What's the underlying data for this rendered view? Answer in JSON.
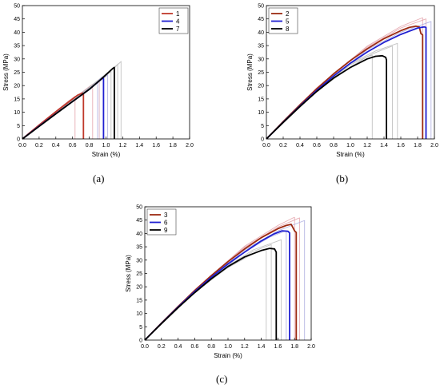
{
  "chart_data": [
    {
      "panel_label": "(a)",
      "type": "line",
      "xlabel": "Strain (%)",
      "ylabel": "Stress (MPa)",
      "xlim": [
        0.0,
        2.0
      ],
      "ylim": [
        0,
        50
      ],
      "xticks": [
        "0.0",
        "0.2",
        "0.4",
        "0.6",
        "0.8",
        "1.0",
        "1.2",
        "1.4",
        "1.6",
        "1.8",
        "2.0"
      ],
      "yticks": [
        "0",
        "5",
        "10",
        "15",
        "20",
        "25",
        "30",
        "35",
        "40",
        "45",
        "50"
      ],
      "legend_position": "top-right",
      "series": [
        {
          "name": "1",
          "color": "#c0392b",
          "x": [
            0,
            0.2,
            0.4,
            0.55,
            0.66,
            0.72,
            0.73,
            0.73
          ],
          "y": [
            0,
            5.2,
            10.2,
            13.8,
            16.4,
            17.2,
            16.8,
            0
          ]
        },
        {
          "name": "4",
          "color": "#1f1fd1",
          "x": [
            0,
            0.2,
            0.4,
            0.6,
            0.8,
            0.92,
            0.96,
            0.97,
            0.97
          ],
          "y": [
            0,
            4.8,
            9.5,
            14.0,
            18.6,
            21.8,
            23.0,
            22.5,
            0
          ]
        },
        {
          "name": "7",
          "color": "#000000",
          "x": [
            0,
            0.2,
            0.4,
            0.6,
            0.8,
            0.95,
            1.08,
            1.1,
            1.1
          ],
          "y": [
            0,
            4.7,
            9.4,
            14.0,
            18.6,
            22.6,
            26.4,
            26.8,
            0
          ]
        }
      ],
      "background_series": [
        {
          "color": "#e3a0a8",
          "x": [
            0,
            0.4,
            0.6,
            0.8,
            0.84,
            0.84
          ],
          "y": [
            0,
            10.0,
            14.8,
            19.6,
            20.5,
            0
          ]
        },
        {
          "color": "#d6a8ba",
          "x": [
            0,
            0.4,
            0.7,
            0.9,
            0.92,
            0.92
          ],
          "y": [
            0,
            10.1,
            17.2,
            21.8,
            22.0,
            0
          ]
        },
        {
          "color": "#a9a9df",
          "x": [
            0,
            0.4,
            0.7,
            0.88,
            0.9,
            0.9
          ],
          "y": [
            0,
            9.6,
            16.5,
            21.0,
            21.5,
            0
          ]
        },
        {
          "color": "#a9a9df",
          "x": [
            0,
            0.4,
            0.7,
            1.0,
            1.02,
            1.02
          ],
          "y": [
            0,
            9.4,
            16.2,
            23.4,
            24.0,
            0
          ]
        },
        {
          "color": "#b8b8b8",
          "x": [
            0,
            0.4,
            0.8,
            1.04,
            1.06,
            1.06
          ],
          "y": [
            0,
            9.5,
            19.0,
            24.8,
            25.2,
            0
          ]
        },
        {
          "color": "#b8b8b8",
          "x": [
            0,
            0.4,
            0.8,
            1.12,
            1.14,
            1.14
          ],
          "y": [
            0,
            9.6,
            19.3,
            27.2,
            28.0,
            0
          ]
        },
        {
          "color": "#b8b8b8",
          "x": [
            0,
            0.4,
            0.8,
            1.16,
            1.18,
            1.18
          ],
          "y": [
            0,
            9.7,
            19.4,
            28.4,
            29.0,
            0
          ]
        },
        {
          "color": "#e3a0a8",
          "x": [
            0,
            0.3,
            0.55,
            0.62,
            0.63,
            0.63
          ],
          "y": [
            0,
            7.9,
            14.2,
            15.8,
            16.0,
            0
          ]
        }
      ]
    },
    {
      "panel_label": "(b)",
      "type": "line",
      "xlabel": "Strain (%)",
      "ylabel": "Stress (MPa)",
      "xlim": [
        0.0,
        2.0
      ],
      "ylim": [
        0,
        50
      ],
      "xticks": [
        "0.0",
        "0.2",
        "0.4",
        "0.6",
        "0.8",
        "1.0",
        "1.2",
        "1.4",
        "1.6",
        "1.8",
        "2.0"
      ],
      "yticks": [
        "0",
        "5",
        "10",
        "15",
        "20",
        "25",
        "30",
        "35",
        "40",
        "45",
        "50"
      ],
      "legend_position": "top-left",
      "series": [
        {
          "name": "2",
          "color": "#9c2a12",
          "x": [
            0,
            0.2,
            0.4,
            0.6,
            0.8,
            1.0,
            1.2,
            1.4,
            1.6,
            1.7,
            1.78,
            1.82,
            1.84,
            1.86,
            1.86
          ],
          "y": [
            0,
            6.5,
            12.8,
            18.8,
            24.4,
            29.4,
            33.8,
            37.6,
            40.6,
            41.8,
            42.3,
            42.0,
            39.5,
            39.0,
            0
          ]
        },
        {
          "name": "5",
          "color": "#1f1fd1",
          "x": [
            0,
            0.2,
            0.4,
            0.6,
            0.8,
            1.0,
            1.2,
            1.4,
            1.6,
            1.8,
            1.88,
            1.9,
            1.9
          ],
          "y": [
            0,
            6.3,
            12.4,
            18.2,
            23.6,
            28.4,
            32.6,
            36.2,
            39.2,
            41.6,
            42.0,
            41.8,
            0
          ]
        },
        {
          "name": "8",
          "color": "#000000",
          "x": [
            0,
            0.2,
            0.4,
            0.6,
            0.8,
            1.0,
            1.2,
            1.3,
            1.38,
            1.42,
            1.43,
            1.43
          ],
          "y": [
            0,
            6.2,
            12.2,
            17.8,
            22.8,
            26.8,
            30.0,
            31.0,
            31.2,
            30.6,
            29.6,
            0
          ]
        }
      ],
      "background_series": [
        {
          "color": "#e3a0a8",
          "x": [
            0,
            0.6,
            1.2,
            1.6,
            1.88,
            1.9,
            1.9
          ],
          "y": [
            0,
            19.0,
            34.4,
            41.6,
            44.8,
            45.0,
            0
          ]
        },
        {
          "color": "#e3a0a8",
          "x": [
            0,
            0.6,
            1.2,
            1.6,
            1.84,
            1.86,
            1.86
          ],
          "y": [
            0,
            19.2,
            34.8,
            42.2,
            45.2,
            45.4,
            0
          ]
        },
        {
          "color": "#a9a9df",
          "x": [
            0,
            0.6,
            1.2,
            1.6,
            1.94,
            1.96,
            1.96
          ],
          "y": [
            0,
            18.6,
            33.4,
            40.0,
            43.8,
            44.0,
            0
          ]
        },
        {
          "color": "#b8b8b8",
          "x": [
            0,
            0.6,
            1.0,
            1.3,
            1.48,
            1.5,
            1.5
          ],
          "y": [
            0,
            18.2,
            27.8,
            32.4,
            34.6,
            34.8,
            0
          ]
        },
        {
          "color": "#b8b8b8",
          "x": [
            0,
            0.6,
            1.0,
            1.3,
            1.54,
            1.56,
            1.56
          ],
          "y": [
            0,
            18.4,
            28.2,
            33.0,
            35.6,
            35.8,
            0
          ]
        },
        {
          "color": "#b8b8b8",
          "x": [
            0,
            0.6,
            1.0,
            1.2,
            1.26,
            1.26
          ],
          "y": [
            0,
            17.8,
            27.0,
            30.8,
            31.4,
            0
          ]
        }
      ]
    },
    {
      "panel_label": "(c)",
      "type": "line",
      "xlabel": "Strain (%)",
      "ylabel": "Stress (MPa)",
      "xlim": [
        0.0,
        2.0
      ],
      "ylim": [
        0,
        50
      ],
      "xticks": [
        "0.0",
        "0.2",
        "0.4",
        "0.6",
        "0.8",
        "1.0",
        "1.2",
        "1.4",
        "1.6",
        "1.8",
        "2.0"
      ],
      "yticks": [
        "0",
        "5",
        "10",
        "15",
        "20",
        "25",
        "30",
        "35",
        "40",
        "45",
        "50"
      ],
      "legend_position": "top-left",
      "series": [
        {
          "name": "3",
          "color": "#9c2a12",
          "x": [
            0,
            0.2,
            0.4,
            0.6,
            0.8,
            1.0,
            1.2,
            1.4,
            1.6,
            1.7,
            1.76,
            1.8,
            1.82,
            1.82
          ],
          "y": [
            0,
            6.4,
            12.6,
            18.6,
            24.2,
            29.4,
            34.2,
            38.4,
            41.8,
            43.0,
            43.4,
            41.0,
            40.4,
            0
          ]
        },
        {
          "name": "6",
          "color": "#1f1fd1",
          "x": [
            0,
            0.2,
            0.4,
            0.6,
            0.8,
            1.0,
            1.2,
            1.4,
            1.55,
            1.65,
            1.72,
            1.74,
            1.74
          ],
          "y": [
            0,
            6.3,
            12.4,
            18.2,
            23.6,
            28.6,
            33.0,
            37.2,
            39.8,
            41.0,
            40.8,
            40.2,
            0
          ]
        },
        {
          "name": "9",
          "color": "#000000",
          "x": [
            0,
            0.2,
            0.4,
            0.6,
            0.8,
            1.0,
            1.2,
            1.4,
            1.5,
            1.56,
            1.58,
            1.58
          ],
          "y": [
            0,
            6.2,
            12.2,
            17.8,
            23.0,
            27.6,
            31.2,
            33.6,
            34.4,
            34.2,
            33.0,
            0
          ]
        }
      ],
      "background_series": [
        {
          "color": "#e3a0a8",
          "x": [
            0,
            0.6,
            1.2,
            1.6,
            1.84,
            1.86,
            1.86
          ],
          "y": [
            0,
            18.8,
            34.8,
            42.4,
            45.6,
            45.8,
            0
          ]
        },
        {
          "color": "#e3a0a8",
          "x": [
            0,
            0.6,
            1.2,
            1.6,
            1.78,
            1.8,
            1.8
          ],
          "y": [
            0,
            18.9,
            35.2,
            43.0,
            45.8,
            46.0,
            0
          ]
        },
        {
          "color": "#a9a9df",
          "x": [
            0,
            0.6,
            1.2,
            1.6,
            1.9,
            1.92,
            1.92
          ],
          "y": [
            0,
            18.4,
            33.8,
            41.0,
            44.6,
            44.8,
            0
          ]
        },
        {
          "color": "#a9a9df",
          "x": [
            0,
            0.6,
            1.2,
            1.5,
            1.68,
            1.7,
            1.7
          ],
          "y": [
            0,
            18.2,
            33.0,
            38.6,
            40.8,
            41.0,
            0
          ]
        },
        {
          "color": "#b8b8b8",
          "x": [
            0,
            0.6,
            1.0,
            1.3,
            1.5,
            1.52,
            1.52
          ],
          "y": [
            0,
            18.0,
            27.4,
            33.2,
            35.6,
            35.8,
            0
          ]
        },
        {
          "color": "#b8b8b8",
          "x": [
            0,
            0.6,
            1.0,
            1.3,
            1.62,
            1.64,
            1.64
          ],
          "y": [
            0,
            18.2,
            27.8,
            33.8,
            37.4,
            37.6,
            0
          ]
        },
        {
          "color": "#b8b8b8",
          "x": [
            0,
            0.6,
            1.0,
            1.3,
            1.44,
            1.46,
            1.46
          ],
          "y": [
            0,
            18.0,
            27.2,
            32.4,
            34.0,
            34.2,
            0
          ]
        }
      ]
    }
  ]
}
